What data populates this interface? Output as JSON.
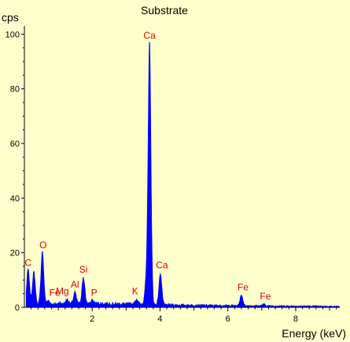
{
  "chart_data": {
    "type": "area",
    "title": "Substrate",
    "xlabel": "Energy (keV)",
    "ylabel": "cps",
    "xlim": [
      0.0,
      9.3
    ],
    "ylim": [
      0,
      103
    ],
    "x_ticks": [
      2,
      4,
      6,
      8
    ],
    "y_ticks": [
      0,
      20,
      40,
      60,
      80,
      100
    ],
    "grid": false,
    "legend": "none",
    "colors": {
      "background": "#ffffcc",
      "spectrum": "#0000ff",
      "peak_label": "#dd0000",
      "axis": "#000000"
    },
    "series": [
      {
        "peaks": [
          {
            "x": 0.11,
            "y": 14
          },
          {
            "x": 0.28,
            "y": 13
          },
          {
            "x": 0.53,
            "y": 20.5
          },
          {
            "x": 0.71,
            "y": 2.5
          },
          {
            "x": 1.04,
            "y": 1.8
          },
          {
            "x": 1.26,
            "y": 3
          },
          {
            "x": 1.49,
            "y": 5.5
          },
          {
            "x": 1.74,
            "y": 11
          },
          {
            "x": 2.01,
            "y": 2.5
          },
          {
            "x": 3.31,
            "y": 3
          },
          {
            "x": 3.59,
            "y": 9
          },
          {
            "x": 3.69,
            "y": 97
          },
          {
            "x": 4.01,
            "y": 12.5
          },
          {
            "x": 6.4,
            "y": 4.5
          },
          {
            "x": 7.06,
            "y": 1.2
          }
        ],
        "baseline": [
          {
            "x": 0.05,
            "y": 1.0
          },
          {
            "x": 2.0,
            "y": 1.5
          },
          {
            "x": 3.0,
            "y": 1.3
          },
          {
            "x": 4.5,
            "y": 0.9
          },
          {
            "x": 6.0,
            "y": 0.7
          },
          {
            "x": 9.3,
            "y": 0.4
          }
        ]
      }
    ],
    "annotations": [
      {
        "text": "Ca",
        "x": 3.69,
        "y": 97
      },
      {
        "text": "C",
        "x": 0.11,
        "y": 14
      },
      {
        "text": "O",
        "x": 0.53,
        "y": 20.5
      },
      {
        "text": "Fe",
        "x": 0.71,
        "y": 2.5
      },
      {
        "text": "Mg",
        "x": 1.26,
        "y": 3
      },
      {
        "text": "Al",
        "x": 1.49,
        "y": 5.5
      },
      {
        "text": "Si",
        "x": 1.74,
        "y": 11
      },
      {
        "text": "P",
        "x": 2.01,
        "y": 2.5
      },
      {
        "text": "K",
        "x": 3.31,
        "y": 3
      },
      {
        "text": "Ca",
        "x": 4.01,
        "y": 12.5
      },
      {
        "text": "Fe",
        "x": 6.4,
        "y": 4.5
      },
      {
        "text": "Fe",
        "x": 7.06,
        "y": 1.2
      }
    ]
  }
}
